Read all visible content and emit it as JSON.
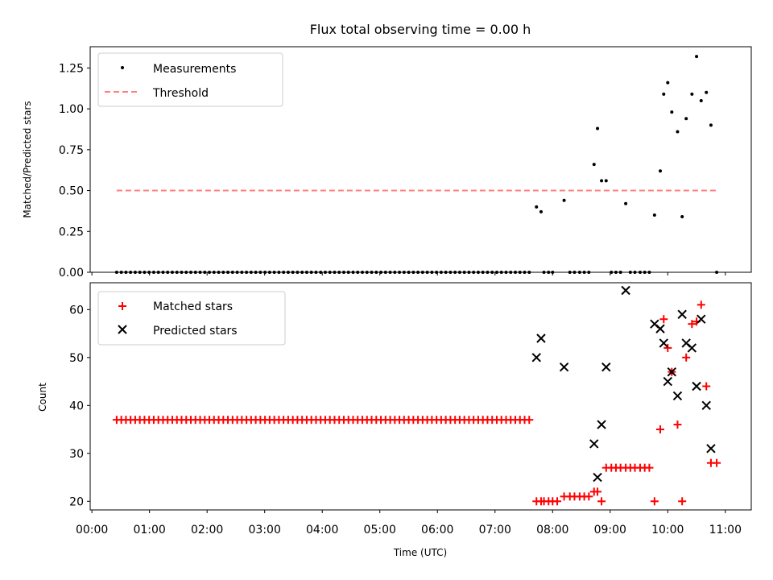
{
  "figure_title": "Flux total observing time = 0.00 h",
  "x_label": "Time (UTC)",
  "x_ticks": [
    "00:00",
    "01:00",
    "02:00",
    "03:00",
    "04:00",
    "05:00",
    "06:00",
    "07:00",
    "08:00",
    "09:00",
    "10:00",
    "11:00"
  ],
  "colors": {
    "measurement": "#000000",
    "threshold": "#ff7f7f",
    "matched": "#ff0000",
    "predicted": "#000000"
  },
  "chart_data": [
    {
      "type": "scatter",
      "id": "ratio",
      "ylabel": "Matched/Predicted stars",
      "xlim": [
        -0.03,
        11.45
      ],
      "ylim": [
        0.0,
        1.38
      ],
      "yticks": [
        "0.00",
        "0.25",
        "0.50",
        "0.75",
        "1.00",
        "1.25"
      ],
      "ytick_values": [
        0.0,
        0.25,
        0.5,
        0.75,
        1.0,
        1.25
      ],
      "legend": {
        "position": "upper-left",
        "entries": [
          "Measurements",
          "Threshold"
        ]
      },
      "threshold": {
        "name": "Threshold",
        "value": 0.5,
        "x_range": [
          0.43,
          10.85
        ]
      },
      "measurements": {
        "name": "Measurements",
        "zero_run": {
          "start": 0.43,
          "end": 7.62,
          "step": 0.0805
        },
        "points": [
          [
            7.72,
            0.4
          ],
          [
            7.8,
            0.37
          ],
          [
            7.85,
            0
          ],
          [
            7.93,
            0
          ],
          [
            8.0,
            0
          ],
          [
            8.2,
            0.44
          ],
          [
            8.3,
            0
          ],
          [
            8.38,
            0
          ],
          [
            8.47,
            0
          ],
          [
            8.55,
            0
          ],
          [
            8.63,
            0
          ],
          [
            8.72,
            0.66
          ],
          [
            8.78,
            0.88
          ],
          [
            8.85,
            0.56
          ],
          [
            8.93,
            0.56
          ],
          [
            9.02,
            0
          ],
          [
            9.1,
            0
          ],
          [
            9.18,
            0
          ],
          [
            9.27,
            0.42
          ],
          [
            9.35,
            0
          ],
          [
            9.43,
            0
          ],
          [
            9.52,
            0
          ],
          [
            9.6,
            0
          ],
          [
            9.68,
            0
          ],
          [
            9.77,
            0.35
          ],
          [
            9.87,
            0.62
          ],
          [
            9.93,
            1.09
          ],
          [
            10.0,
            1.16
          ],
          [
            10.07,
            0.98
          ],
          [
            10.17,
            0.86
          ],
          [
            10.25,
            0.34
          ],
          [
            10.32,
            0.94
          ],
          [
            10.42,
            1.09
          ],
          [
            10.5,
            1.32
          ],
          [
            10.58,
            1.05
          ],
          [
            10.67,
            1.1
          ],
          [
            10.75,
            0.9
          ],
          [
            10.85,
            0
          ]
        ]
      }
    },
    {
      "type": "scatter",
      "id": "counts",
      "ylabel": "Count",
      "xlim": [
        -0.03,
        11.45
      ],
      "ylim": [
        18.2,
        65.6
      ],
      "yticks": [
        "20",
        "30",
        "40",
        "50",
        "60"
      ],
      "ytick_values": [
        20,
        30,
        40,
        50,
        60
      ],
      "legend": {
        "position": "upper-left",
        "entries": [
          "Matched stars",
          "Predicted stars"
        ]
      },
      "matched": {
        "name": "Matched stars",
        "run": {
          "start": 0.43,
          "end": 7.62,
          "step": 0.0805,
          "value": 37
        },
        "points": [
          [
            7.72,
            20
          ],
          [
            7.8,
            20
          ],
          [
            7.85,
            20
          ],
          [
            7.93,
            20
          ],
          [
            8.0,
            20
          ],
          [
            8.08,
            20
          ],
          [
            8.2,
            21
          ],
          [
            8.3,
            21
          ],
          [
            8.38,
            21
          ],
          [
            8.47,
            21
          ],
          [
            8.55,
            21
          ],
          [
            8.63,
            21
          ],
          [
            8.72,
            22
          ],
          [
            8.78,
            22
          ],
          [
            8.85,
            20
          ],
          [
            8.93,
            27
          ],
          [
            9.02,
            27
          ],
          [
            9.1,
            27
          ],
          [
            9.18,
            27
          ],
          [
            9.27,
            27
          ],
          [
            9.35,
            27
          ],
          [
            9.43,
            27
          ],
          [
            9.52,
            27
          ],
          [
            9.6,
            27
          ],
          [
            9.68,
            27
          ],
          [
            9.77,
            20
          ],
          [
            9.87,
            35
          ],
          [
            9.93,
            58
          ],
          [
            10.0,
            52
          ],
          [
            10.07,
            47
          ],
          [
            10.17,
            36
          ],
          [
            10.25,
            20
          ],
          [
            10.32,
            50
          ],
          [
            10.42,
            57
          ],
          [
            10.5,
            57.5
          ],
          [
            10.58,
            61
          ],
          [
            10.67,
            44
          ],
          [
            10.75,
            28
          ],
          [
            10.85,
            28
          ]
        ]
      },
      "predicted": {
        "name": "Predicted stars",
        "points": [
          [
            7.72,
            50
          ],
          [
            7.8,
            54
          ],
          [
            8.2,
            48
          ],
          [
            8.72,
            32
          ],
          [
            8.78,
            25
          ],
          [
            8.85,
            36
          ],
          [
            8.93,
            48
          ],
          [
            9.27,
            64
          ],
          [
            9.77,
            57
          ],
          [
            9.87,
            56
          ],
          [
            9.93,
            53
          ],
          [
            10.0,
            45
          ],
          [
            10.07,
            47
          ],
          [
            10.17,
            42
          ],
          [
            10.25,
            59
          ],
          [
            10.32,
            53
          ],
          [
            10.42,
            52
          ],
          [
            10.5,
            44
          ],
          [
            10.58,
            58
          ],
          [
            10.67,
            40
          ],
          [
            10.75,
            31
          ]
        ]
      }
    }
  ]
}
